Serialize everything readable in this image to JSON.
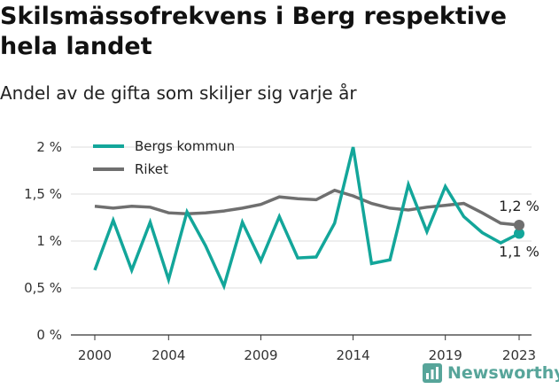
{
  "title": "Skilsmässofrekvens i Berg respektive hela landet",
  "subtitle": "Andel av de gifta som skiljer sig varje år",
  "brand": {
    "name": "Newsworthy",
    "icon": "newsworthy-logo-icon",
    "color": "#57a59a"
  },
  "chart_data": {
    "type": "line",
    "title": "Skilsmässofrekvens i Berg respektive hela landet",
    "subtitle": "Andel av de gifta som skiljer sig varje år",
    "x": [
      2000,
      2001,
      2002,
      2003,
      2004,
      2005,
      2006,
      2007,
      2008,
      2009,
      2010,
      2011,
      2012,
      2013,
      2014,
      2015,
      2016,
      2017,
      2018,
      2019,
      2020,
      2021,
      2022,
      2023
    ],
    "x_ticks": [
      2000,
      2004,
      2009,
      2014,
      2019,
      2023
    ],
    "x_tick_labels": [
      "2000",
      "2004",
      "2009",
      "2014",
      "2019",
      "2023"
    ],
    "xlim": [
      2000,
      2023
    ],
    "y_ticks": [
      0,
      0.5,
      1,
      1.5,
      2
    ],
    "y_tick_labels": [
      "0 %",
      "0,5 %",
      "1 %",
      "1,5 %",
      "2 %"
    ],
    "ylim": [
      0,
      2
    ],
    "grid": "horizontal",
    "legend_position": "top-left",
    "series": [
      {
        "name": "Bergs kommun",
        "color": "#13a69a",
        "values": [
          0.69,
          1.22,
          0.69,
          1.2,
          0.59,
          1.31,
          0.95,
          0.52,
          1.2,
          0.79,
          1.26,
          0.82,
          0.83,
          1.19,
          2.0,
          0.76,
          0.8,
          1.6,
          1.1,
          1.58,
          1.26,
          1.09,
          0.98,
          1.08
        ],
        "end_label": "1,1 %"
      },
      {
        "name": "Riket",
        "color": "#6f6f6f",
        "values": [
          1.37,
          1.35,
          1.37,
          1.36,
          1.3,
          1.29,
          1.3,
          1.32,
          1.35,
          1.39,
          1.47,
          1.45,
          1.44,
          1.54,
          1.48,
          1.4,
          1.35,
          1.33,
          1.36,
          1.38,
          1.4,
          1.3,
          1.19,
          1.17
        ],
        "end_label": "1,2 %"
      }
    ]
  }
}
